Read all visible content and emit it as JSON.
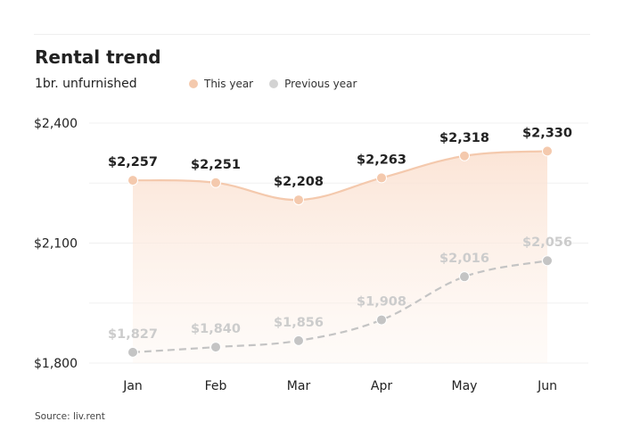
{
  "title": "Rental trend",
  "subtitle": "1br. unfurnished",
  "source": "Source: liv.rent",
  "legend": [
    {
      "name": "This year",
      "color": "#f4c9ad"
    },
    {
      "name": "Previous year",
      "color": "#d3d3d3"
    }
  ],
  "chart_data": {
    "type": "line",
    "categories": [
      "Jan",
      "Feb",
      "Mar",
      "Apr",
      "May",
      "Jun"
    ],
    "series": [
      {
        "name": "This year",
        "values": [
          2257,
          2251,
          2208,
          2263,
          2318,
          2330
        ],
        "labels": [
          "$2,257",
          "$2,251",
          "$2,208",
          "$2,263",
          "$2,318",
          "$2,330"
        ],
        "color": "#f4c9ad",
        "label_color": "#222222",
        "line_style": "solid",
        "fill": true
      },
      {
        "name": "Previous year",
        "values": [
          1827,
          1840,
          1856,
          1908,
          2016,
          2056
        ],
        "labels": [
          "$1,827",
          "$1,840",
          "$1,856",
          "$1,908",
          "$2,016",
          "$2,056"
        ],
        "color": "#c4c4c4",
        "label_color": "#cccccc",
        "line_style": "dashed",
        "fill": false
      }
    ],
    "ylim": [
      1800,
      2400
    ],
    "yticks": [
      1800,
      2100,
      2400
    ],
    "ytick_labels": [
      "$1,800",
      "$2,100",
      "$2,400"
    ],
    "grid": true,
    "legend_position": "top"
  }
}
